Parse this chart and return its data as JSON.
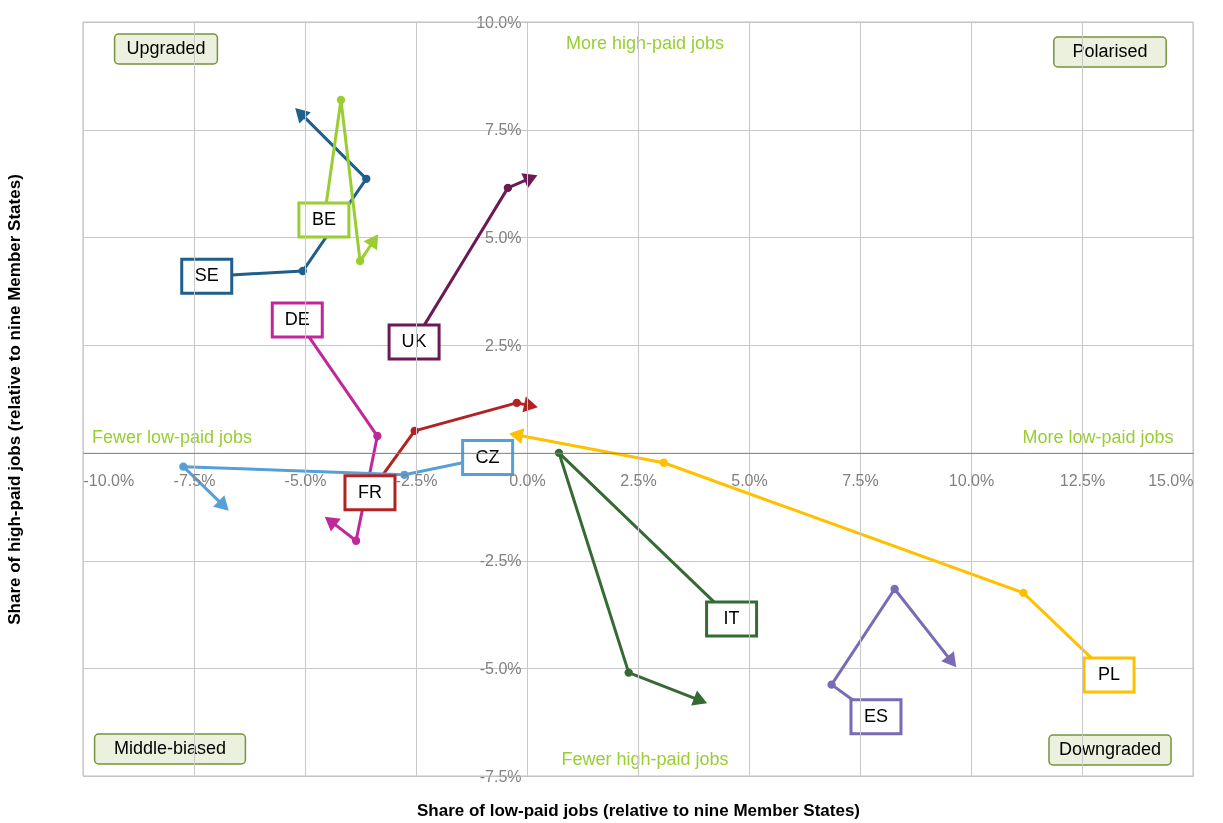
{
  "chart_data": {
    "type": "line",
    "xlabel": "Share of low-paid jobs (relative to nine Member States)",
    "ylabel": "Share of high-paid jobs (relative to nine Member States)",
    "xlim": [
      -10,
      15
    ],
    "ylim": [
      -7.5,
      10
    ],
    "xticks": [
      {
        "value": -10,
        "label": "-10.0%"
      },
      {
        "value": -7.5,
        "label": "-7.5%"
      },
      {
        "value": -5,
        "label": "-5.0%"
      },
      {
        "value": -2.5,
        "label": "-2.5%"
      },
      {
        "value": 0,
        "label": "0.0%"
      },
      {
        "value": 2.5,
        "label": "2.5%"
      },
      {
        "value": 5,
        "label": "5.0%"
      },
      {
        "value": 7.5,
        "label": "7.5%"
      },
      {
        "value": 10,
        "label": "10.0%"
      },
      {
        "value": 12.5,
        "label": "12.5%"
      },
      {
        "value": 15,
        "label": "15.0%"
      }
    ],
    "yticks": [
      {
        "value": -7.5,
        "label": "-7.5%"
      },
      {
        "value": -5,
        "label": "-5.0%"
      },
      {
        "value": -2.5,
        "label": "-2.5%"
      },
      {
        "value": 0,
        "label": null
      },
      {
        "value": 2.5,
        "label": "2.5%"
      },
      {
        "value": 5,
        "label": "5.0%"
      },
      {
        "value": 7.5,
        "label": "7.5%"
      },
      {
        "value": 10,
        "label": "10.0%"
      }
    ],
    "grid": true,
    "marker": "circle",
    "legend": false,
    "series": [
      {
        "name": "SE",
        "color": "#1f5f8b",
        "x": [
          -6.65,
          -5.05,
          -3.62,
          -5.11
        ],
        "values": [
          4.13,
          4.22,
          6.36,
          7.89
        ]
      },
      {
        "name": "BE",
        "color": "#9acd32",
        "x": [
          -4.52,
          -4.19,
          -3.76,
          -3.44
        ],
        "values": [
          5.8,
          8.19,
          4.45,
          4.94
        ]
      },
      {
        "name": "DE",
        "color": "#c0279b",
        "x": [
          -4.91,
          -3.37,
          -3.85,
          -4.43
        ],
        "values": [
          2.69,
          0.39,
          -2.04,
          -1.58
        ]
      },
      {
        "name": "UK",
        "color": "#6b1a53",
        "x": [
          -2.31,
          -0.43,
          0.09
        ],
        "values": [
          2.97,
          6.15,
          6.38
        ]
      },
      {
        "name": "FR",
        "color": "#b22222",
        "x": [
          -3.26,
          -2.53,
          -0.23,
          0.09
        ],
        "values": [
          -0.53,
          0.51,
          1.16,
          1.09
        ]
      },
      {
        "name": "CZ",
        "color": "#56a0d8",
        "x": [
          -1.45,
          -2.76,
          -7.74,
          -6.83
        ],
        "values": [
          -0.23,
          -0.51,
          -0.32,
          -1.23
        ]
      },
      {
        "name": "IT",
        "color": "#356a32",
        "x": [
          4.21,
          0.72,
          2.29,
          3.91
        ],
        "values": [
          -3.46,
          0.0,
          -5.1,
          -5.75
        ]
      },
      {
        "name": "ES",
        "color": "#7b6bb5",
        "x": [
          7.33,
          6.86,
          8.28,
          9.57
        ],
        "values": [
          -5.73,
          -5.38,
          -3.16,
          -4.85
        ]
      },
      {
        "name": "PL",
        "color": "#ffc000",
        "x": [
          12.71,
          11.18,
          3.08,
          -0.25
        ],
        "values": [
          -4.76,
          -3.25,
          -0.23,
          0.42
        ]
      }
    ],
    "annotations": [
      "Upgraded",
      "Polarised",
      "Middle-biased",
      "Downgraded",
      "More high-paid jobs",
      "Fewer high-paid jobs",
      "Fewer low-paid jobs",
      "More low-paid jobs"
    ]
  }
}
